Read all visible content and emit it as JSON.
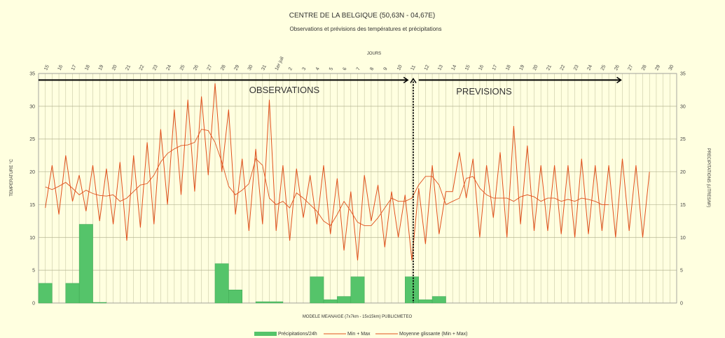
{
  "chart_data": {
    "type": "bar+line",
    "title": "CENTRE DE LA BELGIQUE (50,63N - 04,67E)",
    "subtitle": "Observations et prévisions des températures et précipitations",
    "top_axis_label": "JOURS",
    "xlabel": "MODELE MEANAIGE (7x7km - 15x15km) PUBLICMETEO",
    "ylabel_left": "TEMPERATURE °C",
    "ylabel_right": "PRECIPITATIONS (LITRES/M²)",
    "ylim": [
      0,
      35
    ],
    "yticks": [
      0,
      5,
      10,
      15,
      20,
      25,
      30,
      35
    ],
    "days": [
      "15",
      "16",
      "17",
      "18",
      "19",
      "20",
      "21",
      "22",
      "23",
      "24",
      "25",
      "26",
      "27",
      "28",
      "29",
      "30",
      "31",
      "1er juil",
      "2",
      "3",
      "4",
      "5",
      "6",
      "7",
      "8",
      "9",
      "10",
      "11",
      "12",
      "13",
      "14",
      "15",
      "16",
      "17",
      "18",
      "19",
      "20",
      "21",
      "22",
      "23",
      "24",
      "25",
      "26",
      "27",
      "28",
      "29",
      "30"
    ],
    "annotations": {
      "observations": "OBSERVATIONS",
      "previsions": "PREVISIONS"
    },
    "split_day_index": 27.6,
    "obs_arrow": [
      0,
      27.2
    ],
    "prev_arrow": [
      28.0,
      42.9
    ],
    "minmax": [
      14.5,
      21,
      13.5,
      22.5,
      15.5,
      19.5,
      14,
      21,
      12.5,
      20.5,
      12,
      21.5,
      9.5,
      22.5,
      11.5,
      24.5,
      12,
      26.5,
      15,
      29.5,
      16.5,
      31,
      17,
      31.5,
      19.5,
      33.5,
      20,
      29.5,
      13.5,
      22,
      11,
      23.5,
      12,
      31,
      11,
      21,
      9.5,
      20.5,
      13,
      19.5,
      12,
      21,
      10.5,
      19,
      8,
      17,
      6.5,
      19.5,
      12.5,
      18,
      8.5,
      17,
      10,
      16.5,
      6.5,
      17.5,
      9,
      21,
      10.5,
      17,
      17,
      23,
      16,
      22,
      10,
      21,
      13,
      23,
      10,
      27,
      12,
      24,
      11,
      21,
      11,
      21,
      10.5,
      21,
      10,
      22,
      10.5,
      21,
      11,
      21,
      10,
      22,
      11,
      21,
      10,
      20
    ],
    "moving_avg": [
      [
        0.5,
        17.7
      ],
      [
        1,
        17.3
      ],
      [
        1.5,
        17.8
      ],
      [
        2,
        18.4
      ],
      [
        2.5,
        17.5
      ],
      [
        3,
        16.5
      ],
      [
        3.5,
        17.2
      ],
      [
        4,
        16.7
      ],
      [
        4.5,
        16.4
      ],
      [
        5,
        16.3
      ],
      [
        5.5,
        16.5
      ],
      [
        6,
        15.5
      ],
      [
        6.5,
        16.0
      ],
      [
        7,
        17.0
      ],
      [
        7.5,
        18.0
      ],
      [
        8,
        18.2
      ],
      [
        8.5,
        19.5
      ],
      [
        9,
        21.5
      ],
      [
        9.5,
        22.8
      ],
      [
        10,
        23.5
      ],
      [
        10.5,
        24.0
      ],
      [
        11,
        24.1
      ],
      [
        11.5,
        24.5
      ],
      [
        12,
        26.5
      ],
      [
        12.5,
        26.3
      ],
      [
        13,
        24.5
      ],
      [
        13.5,
        21.5
      ],
      [
        14,
        17.8
      ],
      [
        14.5,
        16.5
      ],
      [
        15,
        17.2
      ],
      [
        15.5,
        18.2
      ],
      [
        16,
        22.0
      ],
      [
        16.5,
        21.0
      ],
      [
        17,
        16.0
      ],
      [
        17.5,
        15.0
      ],
      [
        18,
        15.5
      ],
      [
        18.5,
        14.5
      ],
      [
        19,
        16.8
      ],
      [
        19.5,
        16.0
      ],
      [
        20,
        15.0
      ],
      [
        20.5,
        14.0
      ],
      [
        21,
        12.5
      ],
      [
        21.5,
        11.8
      ],
      [
        22,
        13.5
      ],
      [
        22.5,
        15.5
      ],
      [
        23,
        14.0
      ],
      [
        23.5,
        12.3
      ],
      [
        24,
        11.8
      ],
      [
        24.5,
        11.8
      ],
      [
        25,
        13.0
      ],
      [
        25.5,
        14.5
      ],
      [
        26,
        16.0
      ],
      [
        26.5,
        15.5
      ],
      [
        27,
        15.5
      ],
      [
        27.5,
        16.0
      ],
      [
        28,
        18.0
      ],
      [
        28.5,
        19.3
      ],
      [
        29,
        19.3
      ],
      [
        29.5,
        18.0
      ],
      [
        30,
        15.0
      ],
      [
        30.5,
        15.5
      ],
      [
        31,
        16.0
      ],
      [
        31.5,
        19.0
      ],
      [
        32,
        19.3
      ],
      [
        32.5,
        17.5
      ],
      [
        33,
        16.5
      ],
      [
        33.5,
        16.0
      ],
      [
        34,
        16.0
      ],
      [
        34.5,
        16.0
      ],
      [
        35,
        15.5
      ],
      [
        35.5,
        16.2
      ],
      [
        36,
        16.5
      ],
      [
        36.5,
        16.2
      ],
      [
        37,
        15.5
      ],
      [
        37.5,
        16.0
      ],
      [
        38,
        16.0
      ],
      [
        38.5,
        15.5
      ],
      [
        39,
        15.8
      ],
      [
        39.5,
        15.5
      ],
      [
        40,
        16.0
      ],
      [
        40.5,
        15.8
      ],
      [
        41,
        15.5
      ],
      [
        41.5,
        15.0
      ],
      [
        42,
        15.0
      ]
    ],
    "precip": [
      {
        "x": 0,
        "w": 1,
        "v": 3
      },
      {
        "x": 2,
        "w": 1,
        "v": 3
      },
      {
        "x": 3,
        "w": 1,
        "v": 12
      },
      {
        "x": 4,
        "w": 1,
        "v": 0.1
      },
      {
        "x": 13,
        "w": 1,
        "v": 6
      },
      {
        "x": 14,
        "w": 1,
        "v": 2
      },
      {
        "x": 16,
        "w": 2,
        "v": 0.2
      },
      {
        "x": 20,
        "w": 1,
        "v": 4
      },
      {
        "x": 21,
        "w": 1,
        "v": 0.5
      },
      {
        "x": 22,
        "w": 1,
        "v": 1
      },
      {
        "x": 23,
        "w": 1,
        "v": 4
      },
      {
        "x": 27,
        "w": 1,
        "v": 4
      },
      {
        "x": 28,
        "w": 1,
        "v": 0.5
      },
      {
        "x": 29,
        "w": 1,
        "v": 1
      }
    ],
    "legend": [
      "Précipitations/24h",
      "Min + Max",
      "Moyenne glissante (Min + Max)"
    ],
    "legend_position": "bottom",
    "colors": {
      "line": "#e0501c",
      "bar": "#55c46a",
      "grid": "#c9c9a5",
      "arrow": "#000000"
    }
  }
}
